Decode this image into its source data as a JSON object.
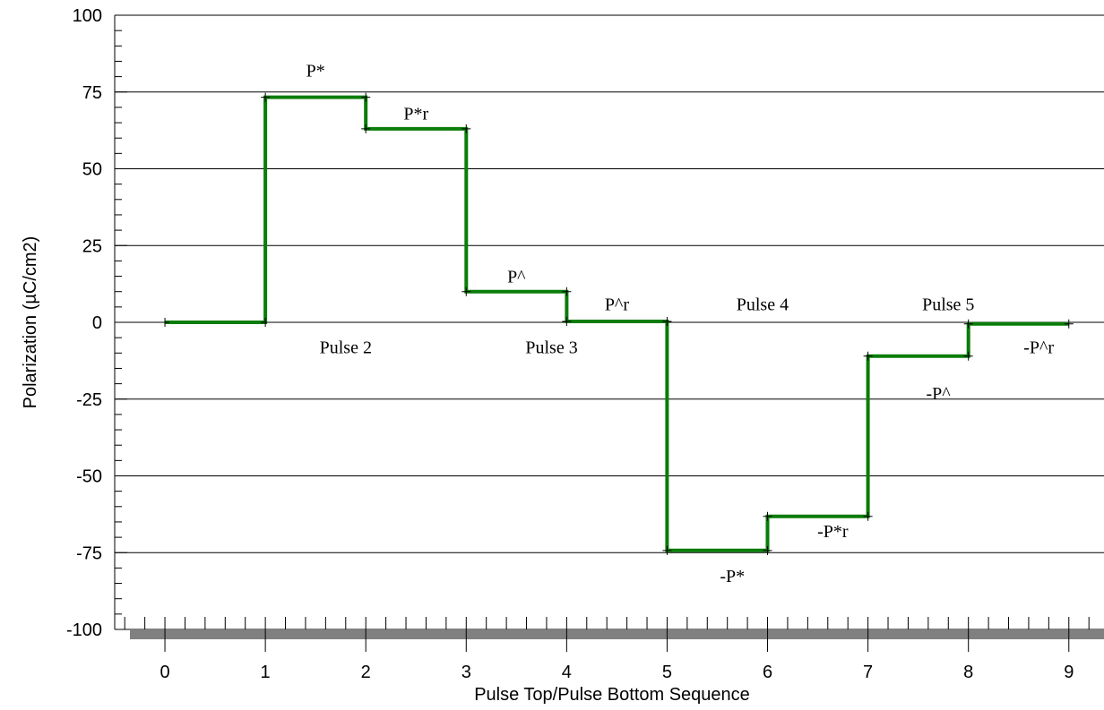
{
  "chart_data": {
    "type": "line",
    "title": "",
    "xlabel": "Pulse Top/Pulse Bottom Sequence",
    "ylabel": "Polarization (µC/cm2)",
    "xlim": [
      -0.5,
      9.35
    ],
    "ylim": [
      -100,
      100
    ],
    "grid": true,
    "x_ticks": [
      0,
      1,
      2,
      3,
      4,
      5,
      6,
      7,
      8,
      9
    ],
    "x_tick_labels": [
      "0",
      "1",
      "2",
      "3",
      "4",
      "5",
      "6",
      "7",
      "8",
      "9"
    ],
    "y_ticks": [
      100,
      75,
      50,
      25,
      0,
      -25,
      -50,
      -75,
      -100
    ],
    "y_tick_labels": [
      "100",
      "75",
      "50",
      "25",
      "0",
      "-25",
      "-50",
      "-75",
      "-100"
    ],
    "series": [
      {
        "color": "#0a7d0a",
        "step": true,
        "x": [
          0,
          1,
          1,
          2,
          2,
          3,
          3,
          4,
          4,
          5,
          5,
          6,
          6,
          7,
          7,
          8,
          8,
          9
        ],
        "y": [
          0,
          0,
          73.3,
          73.3,
          63,
          63,
          10,
          10,
          0.3,
          0.3,
          -74.3,
          -74.3,
          -63.2,
          -63.2,
          -11,
          -11,
          -0.5,
          -0.5
        ]
      }
    ],
    "annotations": [
      {
        "text": "P*",
        "x": 1.5,
        "y": 80
      },
      {
        "text": "P*r",
        "x": 2.5,
        "y": 66
      },
      {
        "text": "P^",
        "x": 3.5,
        "y": 13
      },
      {
        "text": "P^r",
        "x": 4.5,
        "y": 4
      },
      {
        "text": "Pulse 2",
        "x": 1.8,
        "y": -10
      },
      {
        "text": "Pulse 3",
        "x": 3.85,
        "y": -10
      },
      {
        "text": "Pulse 4",
        "x": 5.95,
        "y": 4
      },
      {
        "text": "Pulse 5",
        "x": 7.8,
        "y": 4
      },
      {
        "text": "-P^r",
        "x": 8.7,
        "y": -10
      },
      {
        "text": "-P^",
        "x": 7.7,
        "y": -25
      },
      {
        "text": "-P*r",
        "x": 6.65,
        "y": -70
      },
      {
        "text": "-P*",
        "x": 5.65,
        "y": -84.5
      }
    ]
  }
}
